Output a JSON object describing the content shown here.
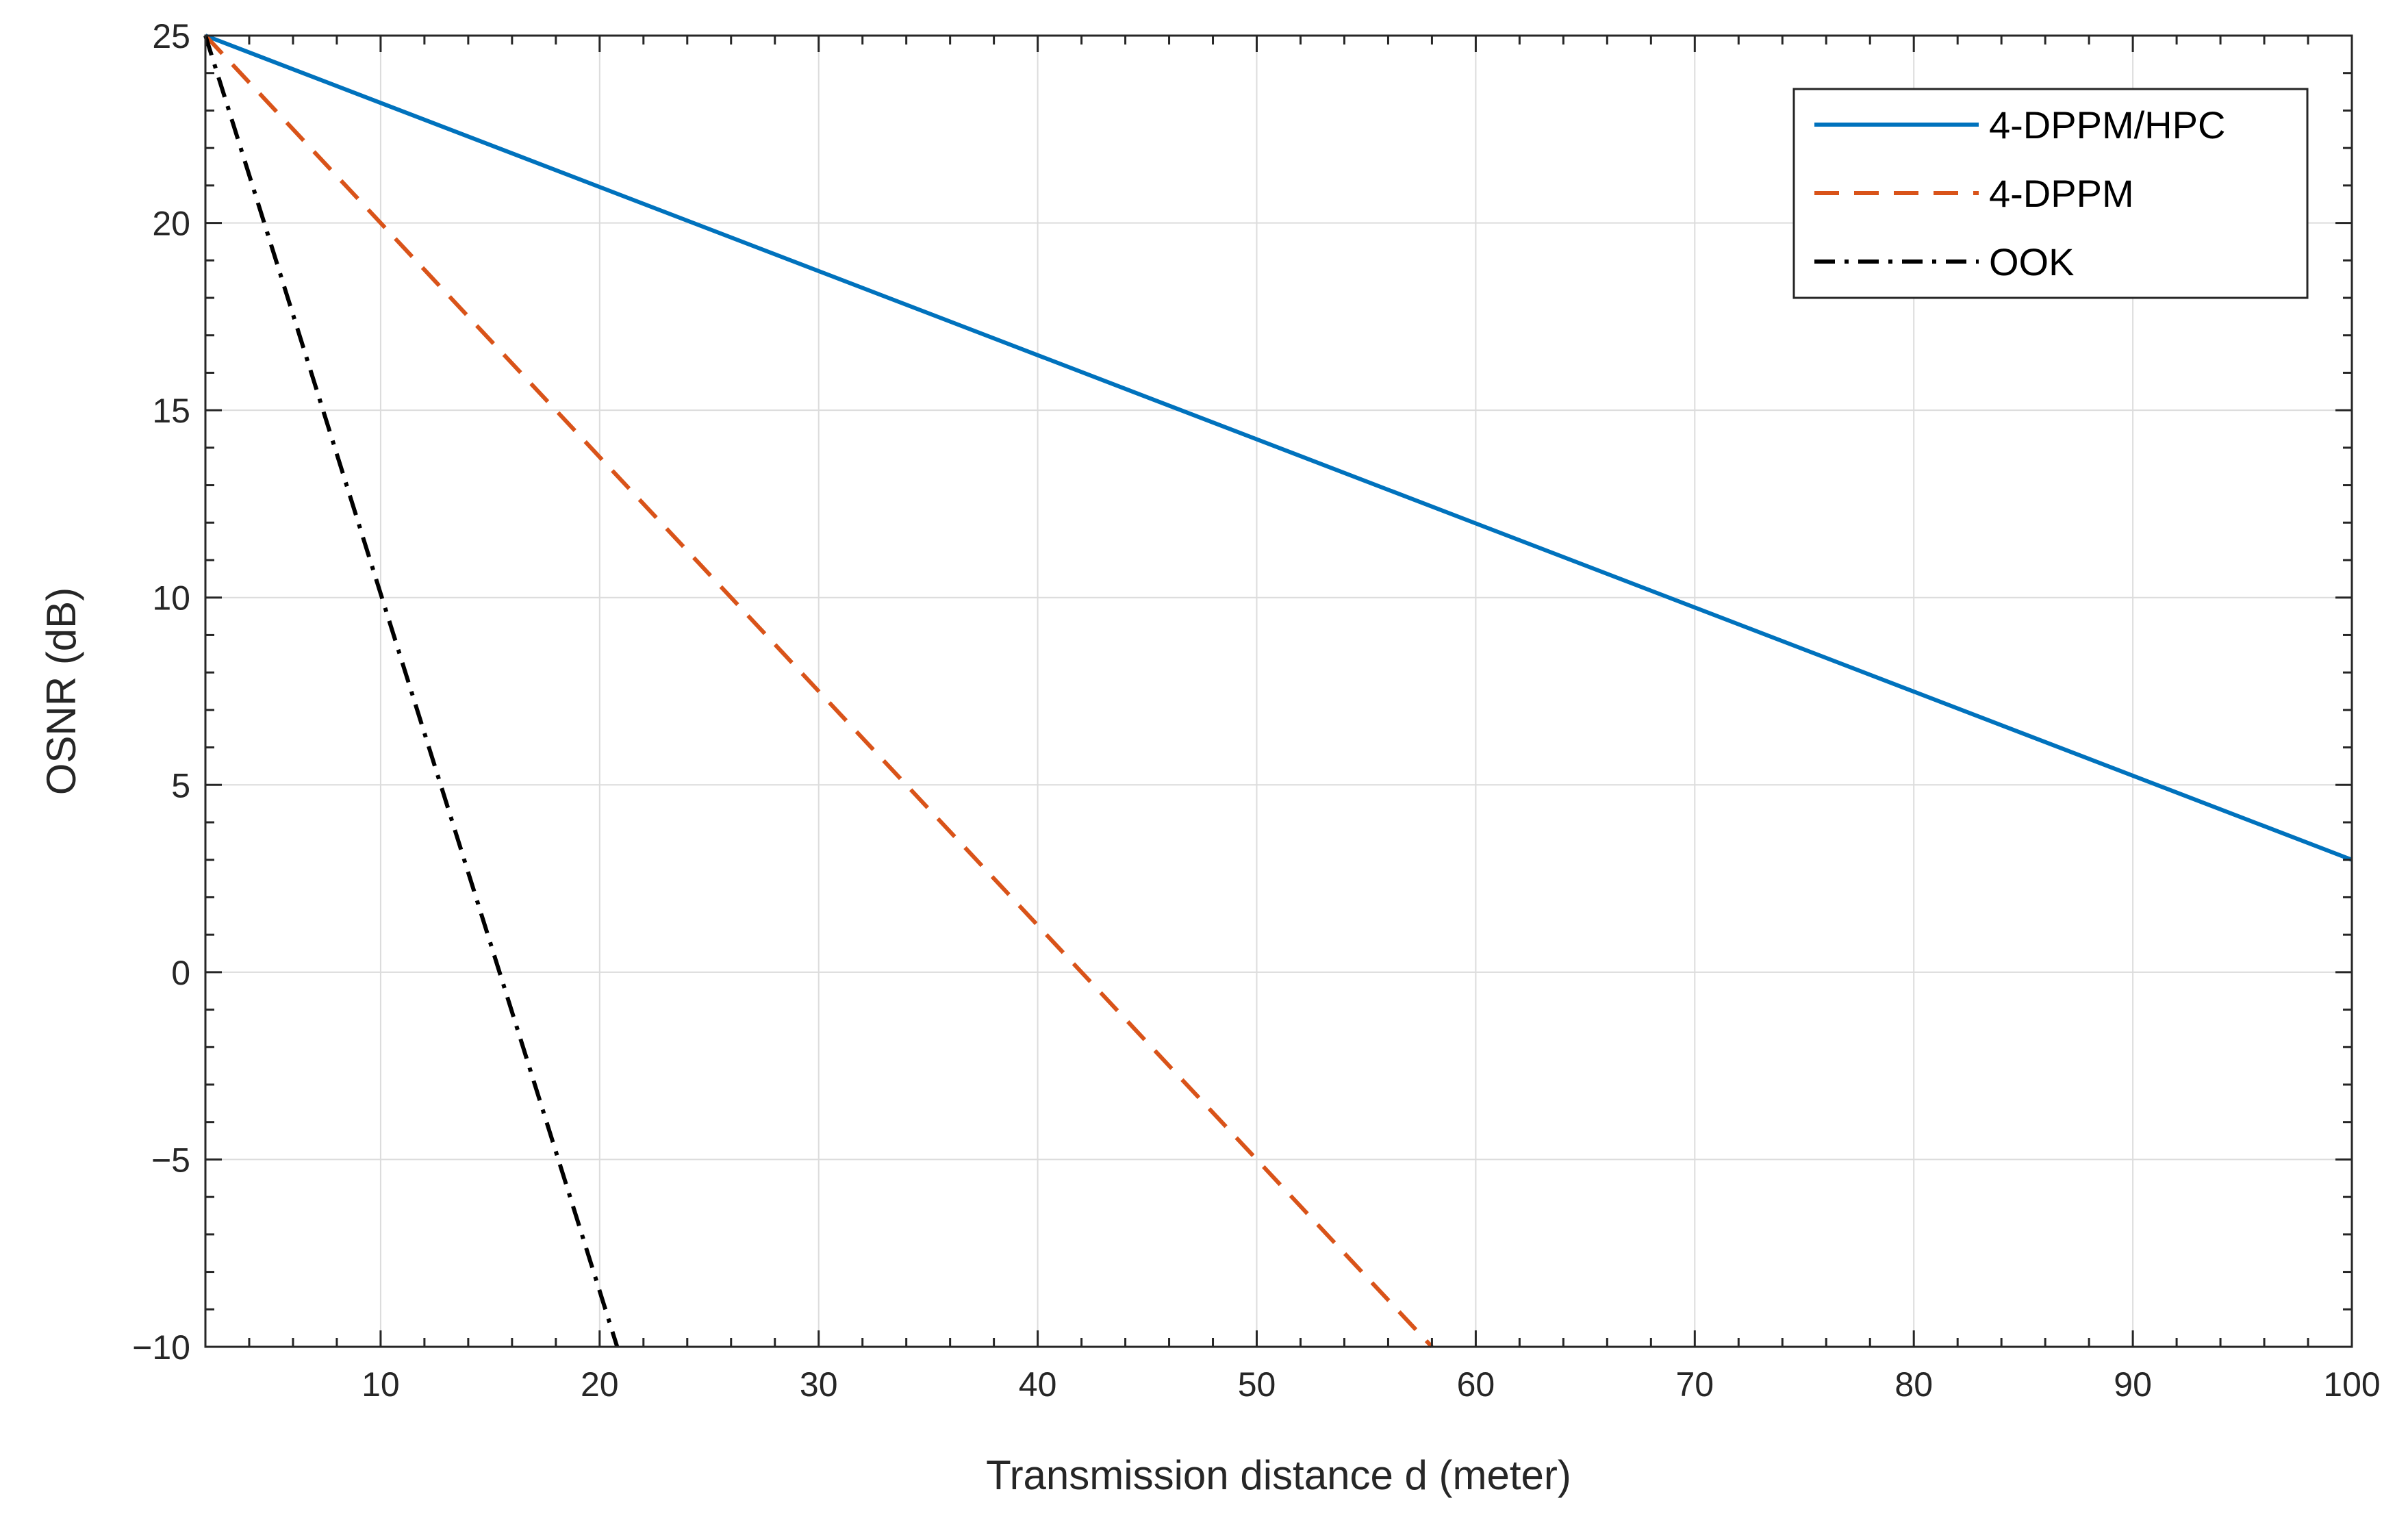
{
  "chart_data": {
    "type": "line",
    "title": "",
    "xlabel": "Transmission distance d (meter)",
    "ylabel": "OSNR (dB)",
    "xlim": [
      2,
      100
    ],
    "ylim": [
      -10,
      25
    ],
    "xticks": [
      10,
      20,
      30,
      40,
      50,
      60,
      70,
      80,
      90,
      100
    ],
    "xtick_labels": [
      "10",
      "20",
      "30",
      "40",
      "50",
      "60",
      "70",
      "80",
      "90",
      "100"
    ],
    "yticks": [
      -10,
      -5,
      0,
      5,
      10,
      15,
      20,
      25
    ],
    "ytick_labels": [
      "−10",
      "−5",
      "0",
      "5",
      "10",
      "15",
      "20",
      "25"
    ],
    "grid": true,
    "legend_position": "top-right",
    "series": [
      {
        "name": "4-DPPM/HPC",
        "color": "#0072BD",
        "style": "solid",
        "x": [
          2,
          100
        ],
        "y": [
          25,
          3
        ]
      },
      {
        "name": "4-DPPM",
        "color": "#D95319",
        "style": "dashed",
        "x": [
          2,
          58
        ],
        "y": [
          25,
          -10
        ]
      },
      {
        "name": "OOK",
        "color": "#000000",
        "style": "dashdot",
        "x": [
          2,
          20.8
        ],
        "y": [
          25,
          -10
        ]
      }
    ]
  }
}
